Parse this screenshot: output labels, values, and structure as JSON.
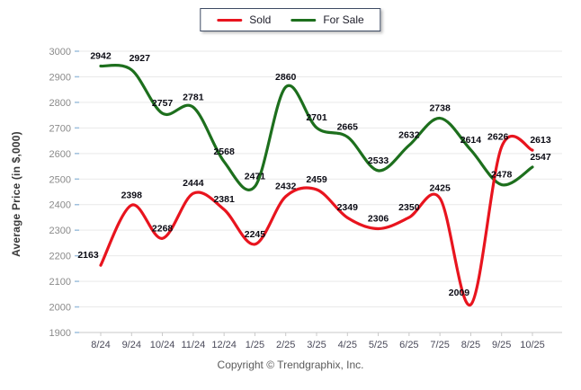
{
  "chart_data": {
    "type": "line",
    "categories": [
      "8/24",
      "9/24",
      "10/24",
      "11/24",
      "12/24",
      "1/25",
      "2/25",
      "3/25",
      "4/25",
      "5/25",
      "6/25",
      "7/25",
      "8/25",
      "9/25",
      "10/25"
    ],
    "series": [
      {
        "name": "Sold",
        "color": "#e8141e",
        "values": [
          2163,
          2398,
          2268,
          2444,
          2381,
          2245,
          2432,
          2459,
          2349,
          2306,
          2350,
          2425,
          2009,
          2626,
          2613
        ]
      },
      {
        "name": "For Sale",
        "color": "#1d6f1d",
        "values": [
          2942,
          2927,
          2757,
          2781,
          2568,
          2471,
          2860,
          2701,
          2665,
          2533,
          2632,
          2738,
          2614,
          2478,
          2547
        ]
      }
    ],
    "title": "",
    "xlabel": "",
    "ylabel": "Average Price (in $,000)",
    "ylim": [
      1900,
      3000
    ],
    "ytick_step": 100,
    "yticks": [
      1900,
      2000,
      2100,
      2200,
      2300,
      2400,
      2500,
      2600,
      2700,
      2800,
      2900,
      3000
    ],
    "grid": true,
    "legend_position": "top-center",
    "point_labels": true,
    "colors": {
      "gridline": "#e9e9e9",
      "axis_line": "#c9c9c9",
      "y_tick": "#9fc0dd",
      "x_tick": "#c9c9c9",
      "y_tick_label": "#8a8a8a",
      "x_tick_label": "#4a4a5a",
      "point_label": "#0b0b14"
    }
  },
  "legend": {
    "items": [
      {
        "label": "Sold",
        "color": "#e8141e"
      },
      {
        "label": "For Sale",
        "color": "#1d6f1d"
      }
    ]
  },
  "footer": {
    "copyright": "Copyright © Trendgraphix, Inc."
  }
}
